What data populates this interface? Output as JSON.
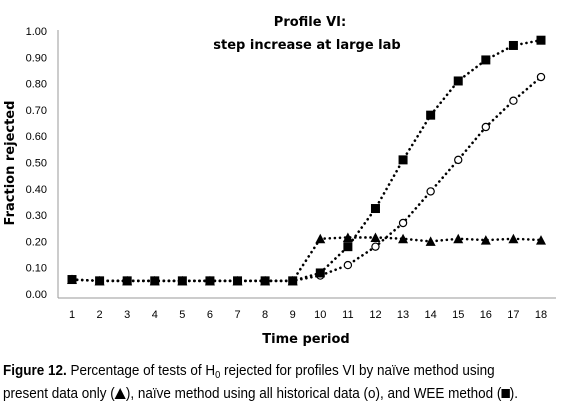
{
  "chart_data": {
    "type": "line",
    "title_lines": [
      "Profile VI:",
      "step increase at large lab"
    ],
    "xlabel": "Time period",
    "ylabel": "Fraction rejected",
    "x": [
      1,
      2,
      3,
      4,
      5,
      6,
      7,
      8,
      9,
      10,
      11,
      12,
      13,
      14,
      15,
      16,
      17,
      18
    ],
    "xlim": [
      1,
      18
    ],
    "ylim": [
      0,
      1
    ],
    "y_ticks": [
      "0.00",
      "0.10",
      "0.20",
      "0.30",
      "0.40",
      "0.50",
      "0.60",
      "0.70",
      "0.80",
      "0.90",
      "1.00"
    ],
    "grid": false,
    "legend": "none",
    "series": [
      {
        "marker": "triangle",
        "values": [
          0.055,
          0.05,
          0.05,
          0.05,
          0.05,
          0.05,
          0.05,
          0.05,
          0.05,
          0.21,
          0.215,
          0.215,
          0.21,
          0.2,
          0.21,
          0.205,
          0.21,
          0.205
        ]
      },
      {
        "marker": "open-circle",
        "values": [
          0.055,
          0.05,
          0.05,
          0.05,
          0.05,
          0.05,
          0.05,
          0.05,
          0.05,
          0.07,
          0.11,
          0.18,
          0.27,
          0.39,
          0.51,
          0.635,
          0.735,
          0.825
        ]
      },
      {
        "marker": "filled-square",
        "values": [
          0.055,
          0.05,
          0.05,
          0.05,
          0.05,
          0.05,
          0.05,
          0.05,
          0.05,
          0.08,
          0.18,
          0.325,
          0.51,
          0.68,
          0.81,
          0.89,
          0.945,
          0.965
        ]
      }
    ]
  },
  "caption": {
    "lead": "Figure 12.",
    "text1": " Percentage of tests of H",
    "sub": "0",
    "text2": " rejected for profiles VI by naïve method using present data only (",
    "text3": "), naïve method using all historical data (o), and WEE method (",
    "text4": ")."
  }
}
